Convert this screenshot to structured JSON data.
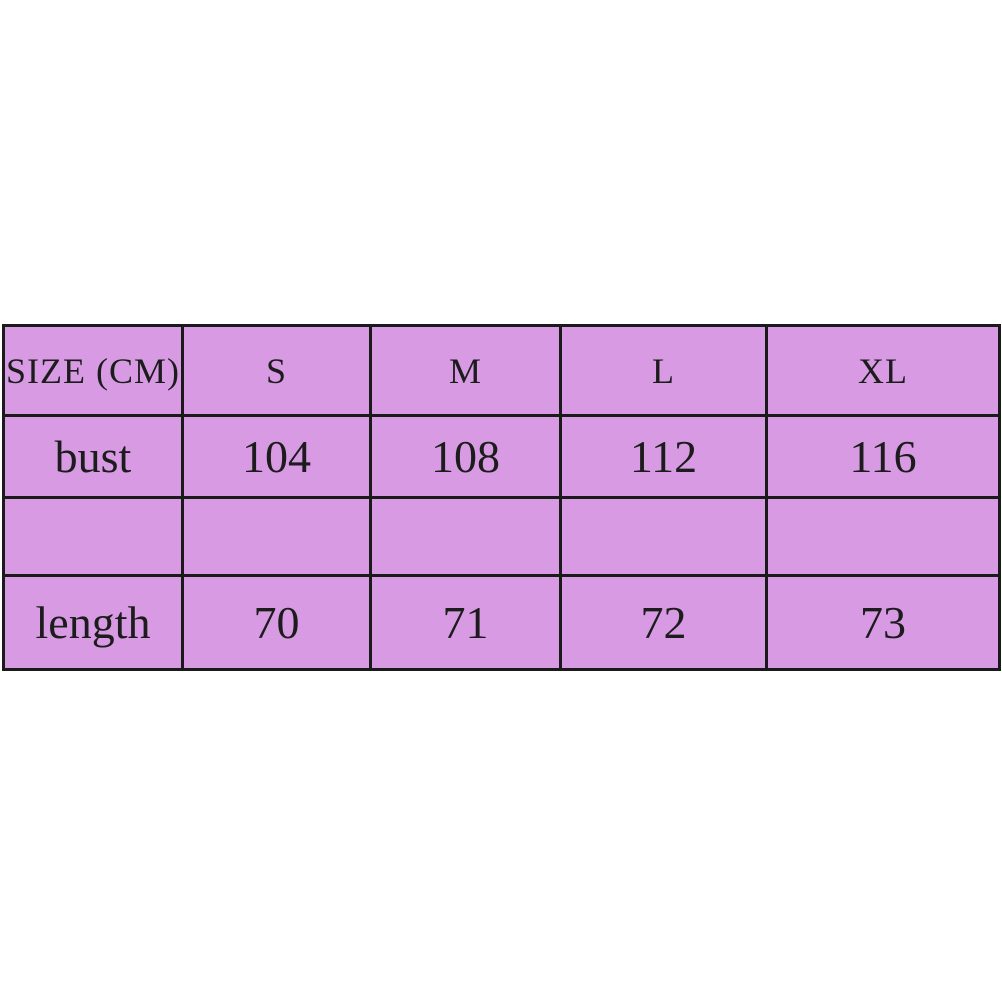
{
  "page": {
    "background_color": "#ffffff"
  },
  "size_chart": {
    "colors": {
      "cell_fill": "#d79ae3",
      "border": "#1a1a1a",
      "text": "#1c1c1c"
    },
    "header": {
      "label": "SIZE (CM)",
      "sizes": [
        "S",
        "M",
        "L",
        "XL"
      ]
    },
    "rows": [
      {
        "label": "bust",
        "values": [
          "104",
          "108",
          "112",
          "116"
        ]
      },
      {
        "label": "",
        "values": [
          "",
          "",
          "",
          ""
        ]
      },
      {
        "label": "length",
        "values": [
          "70",
          "71",
          "72",
          "73"
        ]
      }
    ]
  },
  "chart_data": {
    "type": "table",
    "title": "SIZE (CM)",
    "columns": [
      "SIZE (CM)",
      "S",
      "M",
      "L",
      "XL"
    ],
    "rows": [
      [
        "bust",
        104,
        108,
        112,
        116
      ],
      [
        "",
        "",
        "",
        "",
        ""
      ],
      [
        "length",
        70,
        71,
        72,
        73
      ]
    ],
    "units": "cm",
    "layout_hints": {
      "grid": "on",
      "cell_fill": "#d79ae3",
      "border_color": "#1a1a1a",
      "position": "centered vertically on white canvas, full width"
    }
  }
}
